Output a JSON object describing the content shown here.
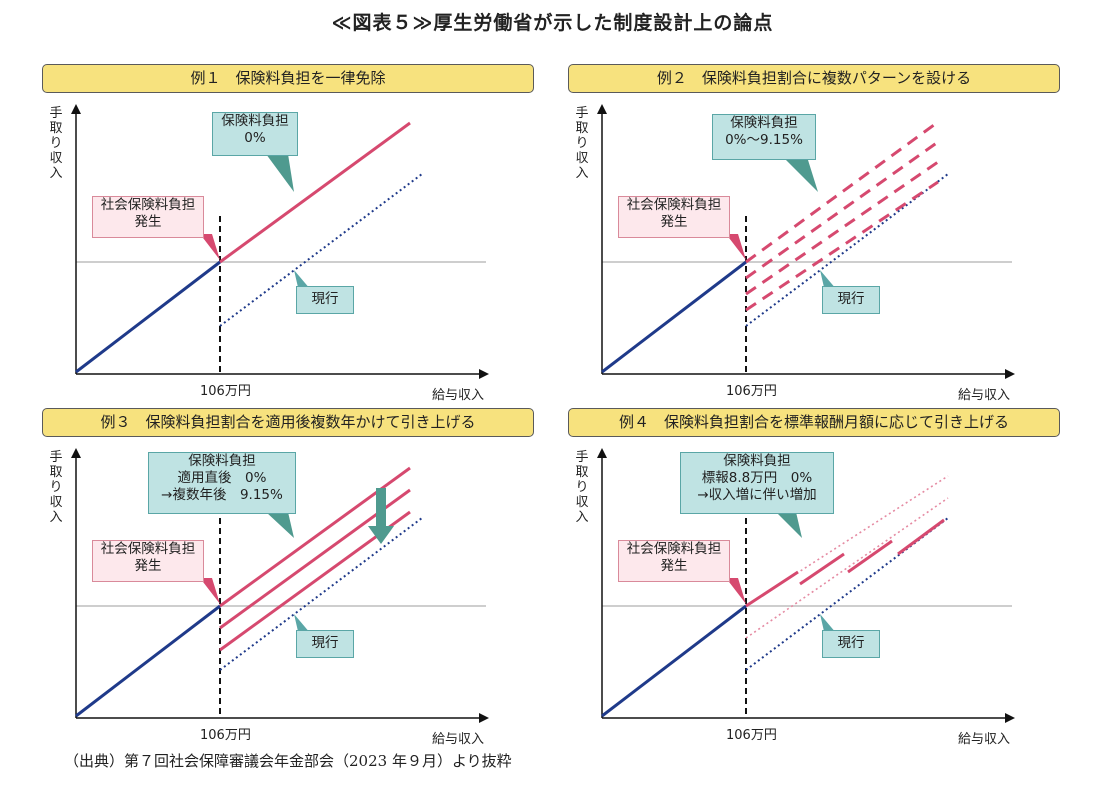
{
  "page": {
    "title": "≪図表５≫厚生労働省が示した制度設計上の論点",
    "source": "（出典）第７回社会保障審議会年金部会（2023 年９月）より抜粋"
  },
  "axes": {
    "ylabel": "手取り収入",
    "xlabel": "給与収入",
    "xtick": "106万円"
  },
  "panels": [
    {
      "id": "example1",
      "title": "例１　保険料負担を一律免除",
      "callout_lines": [
        "保険料負担",
        "0%"
      ],
      "burden_label_lines": [
        "社会保険料負担",
        "発生"
      ],
      "current_label": "現行"
    },
    {
      "id": "example2",
      "title": "例２　保険料負担割合に複数パターンを設ける",
      "callout_lines": [
        "保険料負担",
        "0%～9.15%"
      ],
      "burden_label_lines": [
        "社会保険料負担",
        "発生"
      ],
      "current_label": "現行"
    },
    {
      "id": "example3",
      "title": "例３　保険料負担割合を適用後複数年かけて引き上げる",
      "callout_lines": [
        "保険料負担",
        "適用直後　0%",
        "→複数年後　9.15%"
      ],
      "burden_label_lines": [
        "社会保険料負担",
        "発生"
      ],
      "current_label": "現行"
    },
    {
      "id": "example4",
      "title": "例４　保険料負担割合を標準報酬月額に応じて引き上げる",
      "callout_lines": [
        "保険料負担",
        "標報8.8万円　0%",
        "→収入増に伴い増加"
      ],
      "burden_label_lines": [
        "社会保険料負担",
        "発生"
      ],
      "current_label": "現行"
    }
  ],
  "colors": {
    "pink": "#d6496f",
    "navy": "#1f3a8a",
    "teal_box": "#bfe3e3",
    "pink_box": "#fde8ec",
    "header": "#f7e27e",
    "arrow": "#4f9a8f"
  }
}
